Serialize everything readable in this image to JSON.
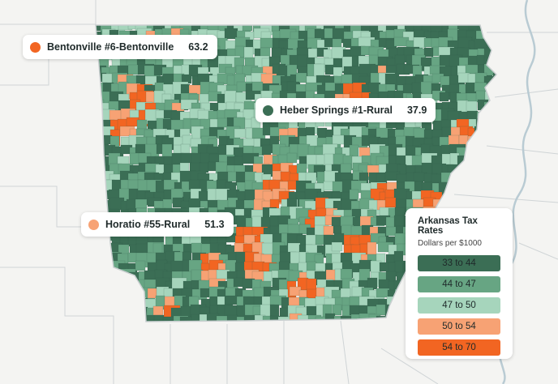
{
  "map": {
    "state": "Arkansas",
    "regions": [
      {
        "label": "Bentonville #6-Bentonville",
        "value": "63.2",
        "marker_color": "#f26522"
      },
      {
        "label": "Heber Springs #1-Rural",
        "value": "37.9",
        "marker_color": "#3b6e55"
      },
      {
        "label": "Horatio #55-Rural",
        "value": "51.3",
        "marker_color": "#f7a274"
      }
    ]
  },
  "legend": {
    "title": "Arkansas Tax Rates",
    "subtitle": "Dollars per $1000",
    "bins": [
      {
        "label": "33 to 44",
        "color": "#3b6e55"
      },
      {
        "label": "44 to 47",
        "color": "#67a583"
      },
      {
        "label": "47 to 50",
        "color": "#a6d5bc"
      },
      {
        "label": "50 to 54",
        "color": "#f7a274"
      },
      {
        "label": "54 to 70",
        "color": "#f26522"
      }
    ]
  },
  "colors": {
    "background": "#f4f4f2",
    "state_outline": "#c9cfd0",
    "water": "#c8d6dc"
  }
}
